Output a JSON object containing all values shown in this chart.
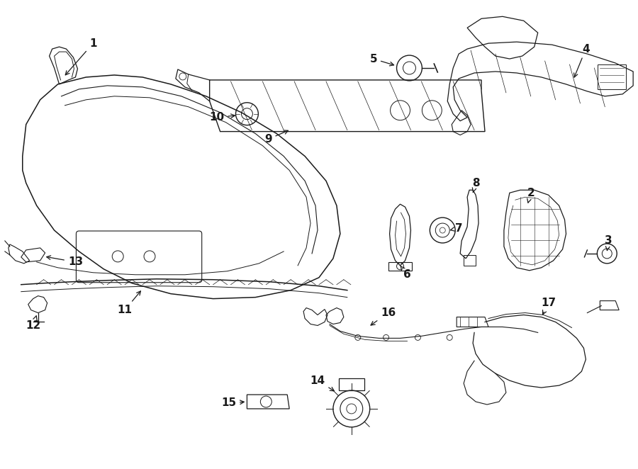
{
  "bg_color": "#ffffff",
  "line_color": "#1a1a1a",
  "fig_width": 9.0,
  "fig_height": 6.62,
  "dpi": 100,
  "lw": 1.0
}
